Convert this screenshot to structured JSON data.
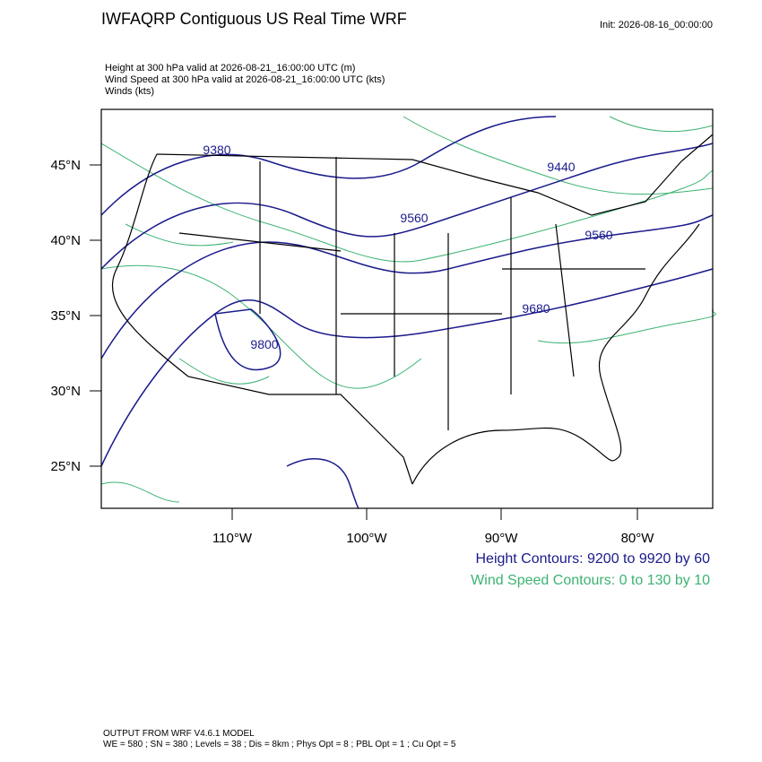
{
  "header": {
    "title": "IWFAQRP Contiguous US Real Time WRF",
    "init": "Init: 2026-08-16_00:00:00"
  },
  "fields": [
    "Height at 300 hPa valid at 2026-08-21_16:00:00 UTC   (m)",
    "Wind Speed at 300 hPa valid at 2026-08-21_16:00:00 UTC   (kts)",
    "Winds   (kts)"
  ],
  "map": {
    "lat_labels": [
      "45°N",
      "40°N",
      "35°N",
      "30°N",
      "25°N"
    ],
    "lon_labels": [
      "110°W",
      "100°W",
      "90°W",
      "80°W"
    ],
    "contour_labels": [
      "9380",
      "9440",
      "9560",
      "9560",
      "9680",
      "9800"
    ]
  },
  "legend": {
    "height": "Height Contours: 9200 to 9920 by 60",
    "wind": "Wind Speed Contours: 0 to 130 by 10"
  },
  "footer": [
    "OUTPUT FROM WRF V4.6.1 MODEL",
    "WE = 580 ; SN = 380 ; Levels = 38 ; Dis = 8km ; Phys Opt = 8 ; PBL Opt = 1 ; Cu Opt = 5"
  ]
}
